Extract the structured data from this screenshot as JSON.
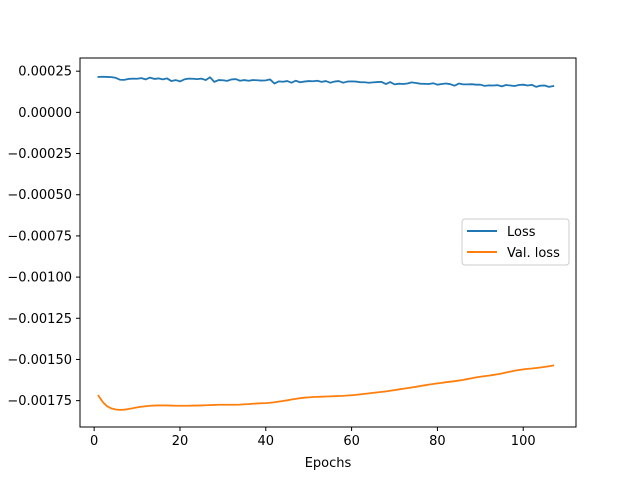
{
  "chart_data": {
    "type": "line",
    "title": "",
    "xlabel": "Epochs",
    "ylabel": "",
    "xlim": [
      -3.3,
      112.3
    ],
    "ylim": [
      -0.00191,
      0.00033
    ],
    "xticks": [
      0,
      20,
      40,
      60,
      80,
      100
    ],
    "xtick_labels": [
      "0",
      "20",
      "40",
      "60",
      "80",
      "100"
    ],
    "yticks": [
      0.00025,
      0.0,
      -0.00025,
      -0.0005,
      -0.00075,
      -0.001,
      -0.00125,
      -0.0015,
      -0.00175
    ],
    "ytick_labels": [
      "0.00025",
      "0.00000",
      "−0.00025",
      "−0.00050",
      "−0.00075",
      "−0.00100",
      "−0.00125",
      "−0.00150",
      "−0.00175"
    ],
    "grid": false,
    "legend_position": "center-right",
    "x": [
      1,
      2,
      3,
      4,
      5,
      6,
      7,
      8,
      9,
      10,
      11,
      12,
      13,
      14,
      15,
      16,
      17,
      18,
      19,
      20,
      21,
      22,
      23,
      24,
      25,
      26,
      27,
      28,
      29,
      30,
      31,
      32,
      33,
      34,
      35,
      36,
      37,
      38,
      39,
      40,
      41,
      42,
      43,
      44,
      45,
      46,
      47,
      48,
      49,
      50,
      51,
      52,
      53,
      54,
      55,
      56,
      57,
      58,
      59,
      60,
      61,
      62,
      63,
      64,
      65,
      66,
      67,
      68,
      69,
      70,
      71,
      72,
      73,
      74,
      75,
      76,
      77,
      78,
      79,
      80,
      81,
      82,
      83,
      84,
      85,
      86,
      87,
      88,
      89,
      90,
      91,
      92,
      93,
      94,
      95,
      96,
      97,
      98,
      99,
      100,
      101,
      102,
      103,
      104,
      105,
      106,
      107
    ],
    "series": [
      {
        "name": "Loss",
        "color": "#1f77b4",
        "values": [
          0.000215,
          0.000216,
          0.000215,
          0.000214,
          0.00021,
          0.000198,
          0.000197,
          0.000203,
          0.000205,
          0.000204,
          0.000208,
          0.0002,
          0.000211,
          0.000203,
          0.000206,
          0.0002,
          0.000206,
          0.00019,
          0.000196,
          0.000188,
          0.0002,
          0.000205,
          0.000204,
          0.000202,
          0.000205,
          0.000196,
          0.000213,
          0.000185,
          0.000196,
          0.000195,
          0.000191,
          0.0002,
          0.000202,
          0.000192,
          0.000196,
          0.000192,
          0.000196,
          0.000195,
          0.000193,
          0.000194,
          0.0002,
          0.000175,
          0.000188,
          0.000186,
          0.00019,
          0.00018,
          0.000192,
          0.000183,
          0.000187,
          0.00019,
          0.000189,
          0.000192,
          0.000185,
          0.00019,
          0.00018,
          0.000187,
          0.00019,
          0.00018,
          0.000187,
          0.000188,
          0.000187,
          0.000183,
          0.000183,
          0.00018,
          0.000182,
          0.000184,
          0.000185,
          0.000172,
          0.000184,
          0.00017,
          0.000174,
          0.000172,
          0.000175,
          0.000182,
          0.000178,
          0.000174,
          0.000173,
          0.000172,
          0.000177,
          0.000168,
          0.000172,
          0.000175,
          0.000171,
          0.000162,
          0.000175,
          0.00017,
          0.00017,
          0.000171,
          0.000168,
          0.000168,
          0.000161,
          0.000164,
          0.000163,
          0.000165,
          0.000158,
          0.000166,
          0.000163,
          0.00016,
          0.000166,
          0.000168,
          0.000163,
          0.000167,
          0.000155,
          0.000162,
          0.000163,
          0.000155,
          0.00016
        ]
      },
      {
        "name": "Val. loss",
        "color": "#ff7f0e",
        "values": [
          -0.00172,
          -0.001758,
          -0.001784,
          -0.001797,
          -0.001804,
          -0.001806,
          -0.001805,
          -0.001801,
          -0.001796,
          -0.001791,
          -0.001787,
          -0.001784,
          -0.001781,
          -0.00178,
          -0.001779,
          -0.001779,
          -0.001779,
          -0.00178,
          -0.001781,
          -0.001781,
          -0.001781,
          -0.001781,
          -0.00178,
          -0.00178,
          -0.001779,
          -0.001778,
          -0.001777,
          -0.001776,
          -0.001775,
          -0.001775,
          -0.001775,
          -0.001775,
          -0.001775,
          -0.001774,
          -0.001772,
          -0.001771,
          -0.001769,
          -0.001767,
          -0.001766,
          -0.001765,
          -0.001763,
          -0.00176,
          -0.001756,
          -0.001752,
          -0.001748,
          -0.001743,
          -0.001739,
          -0.001735,
          -0.001732,
          -0.00173,
          -0.001728,
          -0.001727,
          -0.001726,
          -0.001725,
          -0.001724,
          -0.001723,
          -0.001722,
          -0.001721,
          -0.001719,
          -0.001717,
          -0.001715,
          -0.001712,
          -0.001709,
          -0.001706,
          -0.001703,
          -0.0017,
          -0.001697,
          -0.001694,
          -0.00169,
          -0.001686,
          -0.001682,
          -0.001678,
          -0.001674,
          -0.00167,
          -0.001666,
          -0.001661,
          -0.001657,
          -0.001653,
          -0.001649,
          -0.001645,
          -0.001642,
          -0.001638,
          -0.001635,
          -0.001632,
          -0.001628,
          -0.001624,
          -0.001619,
          -0.001614,
          -0.001609,
          -0.001605,
          -0.001601,
          -0.001598,
          -0.001594,
          -0.00159,
          -0.001585,
          -0.001579,
          -0.001574,
          -0.001568,
          -0.001564,
          -0.00156,
          -0.001557,
          -0.001555,
          -0.001552,
          -0.001549,
          -0.001545,
          -0.001541,
          -0.001537
        ]
      }
    ]
  }
}
